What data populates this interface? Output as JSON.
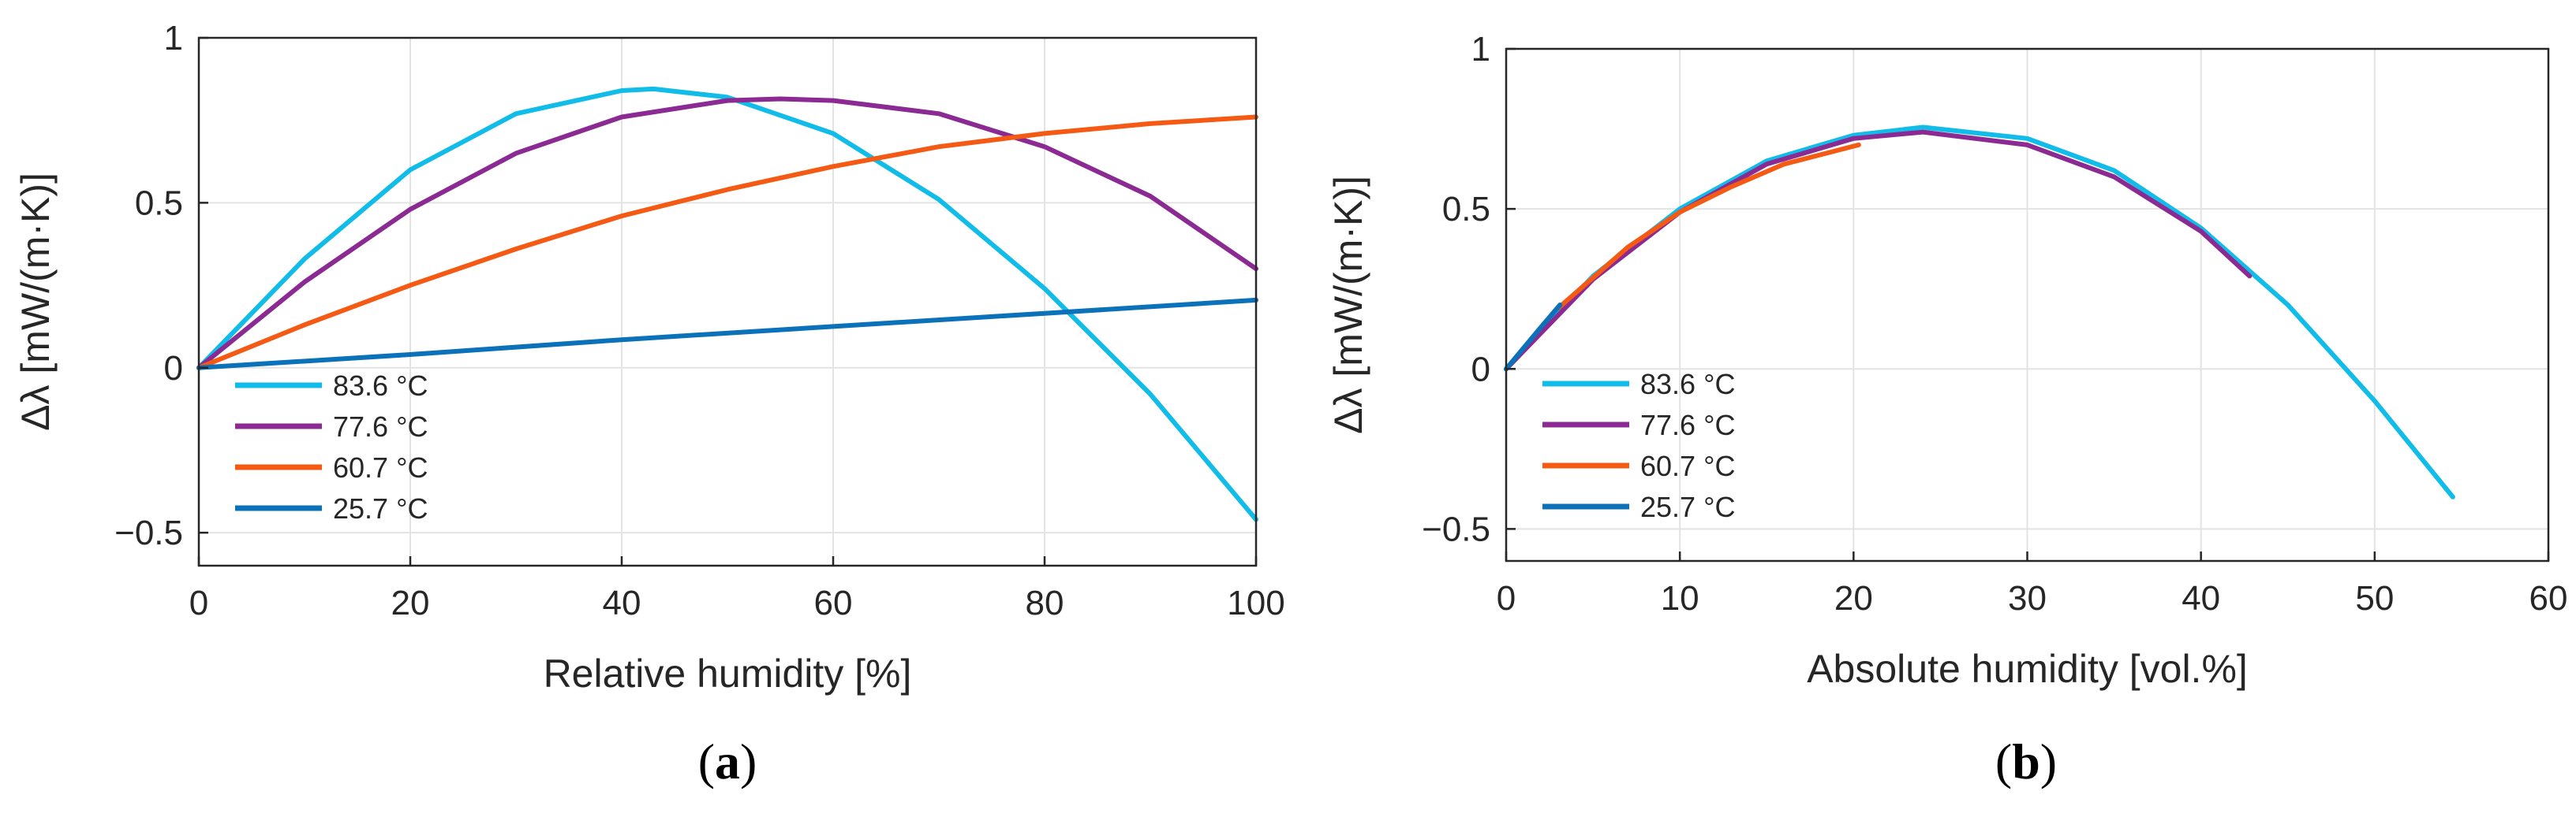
{
  "colors": {
    "c83_6": "#12bce9",
    "c77_6": "#8b2a92",
    "c60_7": "#f45a13",
    "c25_7": "#0b71b9",
    "text": "#262626",
    "grid": "#e3e3e3"
  },
  "chart_data": [
    {
      "type": "line",
      "panel_label": "(a)",
      "panel_letter": "a",
      "title": "",
      "xlabel": "Relative humidity [%]",
      "ylabel": "Δλ [mW/(m·K)]",
      "xlim": [
        0,
        100
      ],
      "ylim": [
        -0.6,
        1
      ],
      "xticks": [
        0,
        20,
        40,
        60,
        80,
        100
      ],
      "yticks": [
        -0.5,
        0,
        0.5,
        1
      ],
      "xtick_labels": [
        "0",
        "20",
        "40",
        "60",
        "80",
        "100"
      ],
      "ytick_labels": [
        "−0.5",
        "0",
        "0.5",
        "1"
      ],
      "grid": true,
      "legend_position": "bottom-left",
      "series": [
        {
          "name": "83.6 °C",
          "color_key": "c83_6",
          "x": [
            0,
            10,
            20,
            30,
            40,
            43,
            50,
            60,
            70,
            80,
            90,
            100
          ],
          "y": [
            0,
            0.33,
            0.6,
            0.77,
            0.84,
            0.845,
            0.82,
            0.71,
            0.51,
            0.24,
            -0.08,
            -0.46
          ]
        },
        {
          "name": "77.6 °C",
          "color_key": "c77_6",
          "x": [
            0,
            10,
            20,
            30,
            40,
            50,
            55,
            60,
            70,
            80,
            90,
            100
          ],
          "y": [
            0,
            0.26,
            0.48,
            0.65,
            0.76,
            0.81,
            0.815,
            0.81,
            0.77,
            0.67,
            0.52,
            0.3
          ]
        },
        {
          "name": "60.7 °C",
          "color_key": "c60_7",
          "x": [
            0,
            10,
            20,
            30,
            40,
            50,
            60,
            70,
            80,
            90,
            100
          ],
          "y": [
            0,
            0.13,
            0.25,
            0.36,
            0.46,
            0.54,
            0.61,
            0.67,
            0.71,
            0.74,
            0.76
          ]
        },
        {
          "name": "25.7 °C",
          "color_key": "c25_7",
          "x": [
            0,
            20,
            40,
            60,
            80,
            100
          ],
          "y": [
            0,
            0.04,
            0.085,
            0.125,
            0.165,
            0.205
          ]
        }
      ]
    },
    {
      "type": "line",
      "panel_label": "(b)",
      "panel_letter": "b",
      "title": "",
      "xlabel": "Absolute humidity [vol.%]",
      "ylabel": "Δλ [mW/(m·K)]",
      "xlim": [
        0,
        60
      ],
      "ylim": [
        -0.6,
        1
      ],
      "xticks": [
        0,
        10,
        20,
        30,
        40,
        50,
        60
      ],
      "yticks": [
        -0.5,
        0,
        0.5,
        1
      ],
      "xtick_labels": [
        "0",
        "10",
        "20",
        "30",
        "40",
        "50",
        "60"
      ],
      "ytick_labels": [
        "−0.5",
        "0",
        "0.5",
        "1"
      ],
      "grid": true,
      "legend_position": "bottom-left",
      "series": [
        {
          "name": "83.6 °C",
          "color_key": "c83_6",
          "x": [
            0,
            5,
            10,
            15,
            20,
            24,
            30,
            35,
            40,
            45,
            50,
            54.5
          ],
          "y": [
            0,
            0.29,
            0.5,
            0.65,
            0.73,
            0.755,
            0.72,
            0.62,
            0.44,
            0.2,
            -0.1,
            -0.4
          ]
        },
        {
          "name": "77.6 °C",
          "color_key": "c77_6",
          "x": [
            0,
            5,
            10,
            15,
            20,
            24,
            30,
            35,
            40,
            42.8
          ],
          "y": [
            0,
            0.28,
            0.49,
            0.64,
            0.72,
            0.74,
            0.7,
            0.6,
            0.43,
            0.29
          ]
        },
        {
          "name": "60.7 °C",
          "color_key": "c60_7",
          "x": [
            3,
            7,
            10,
            13,
            16,
            20.3
          ],
          "y": [
            0.19,
            0.38,
            0.49,
            0.57,
            0.64,
            0.7
          ]
        },
        {
          "name": "25.7 °C",
          "color_key": "c25_7",
          "x": [
            0,
            1,
            2,
            3.1
          ],
          "y": [
            0,
            0.065,
            0.13,
            0.2
          ]
        }
      ]
    }
  ]
}
